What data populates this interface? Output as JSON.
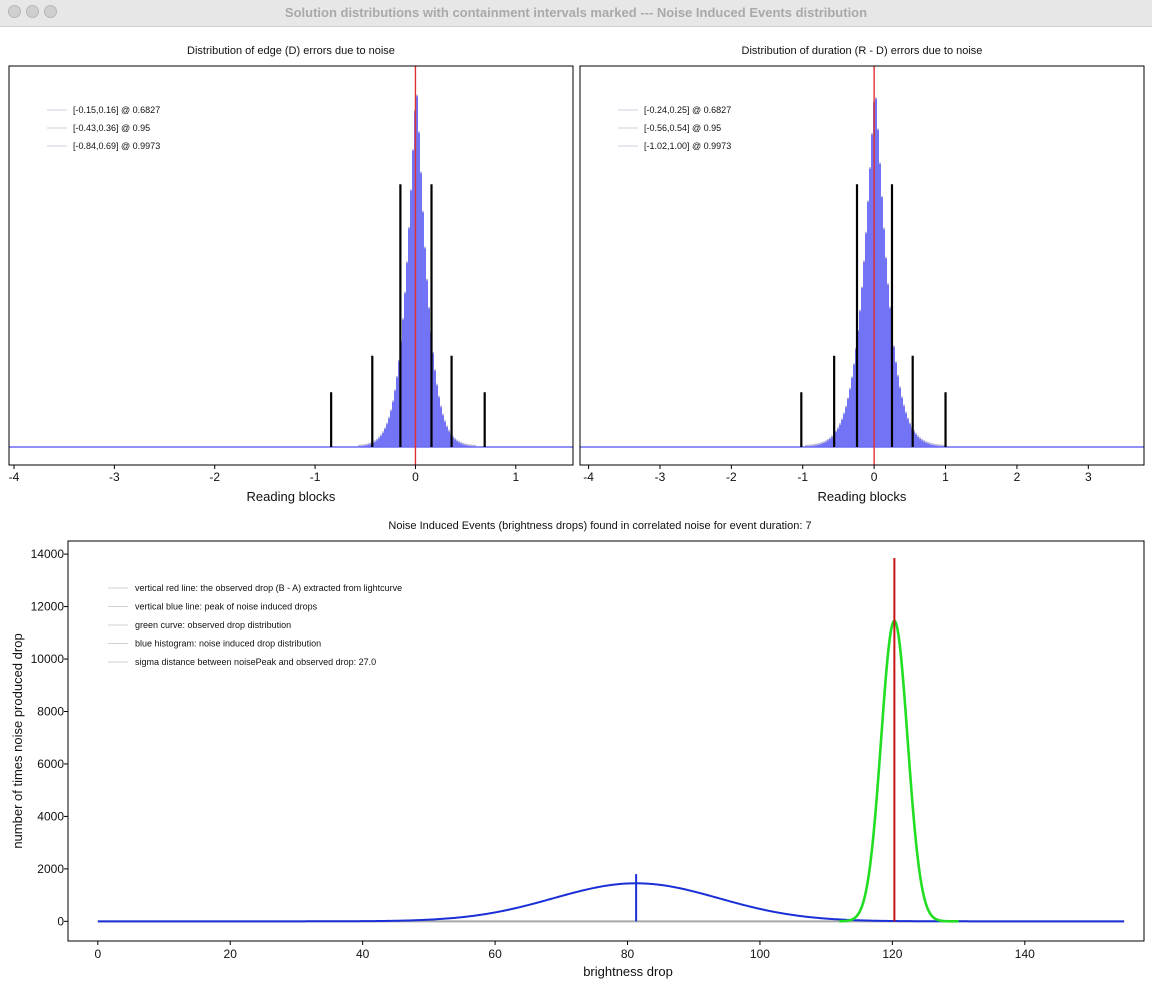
{
  "window": {
    "title": "Solution distributions with containment intervals marked --- Noise Induced Events distribution"
  },
  "chart_data": [
    {
      "type": "histogram",
      "title": "Distribution of edge (D) errors due to noise",
      "xlabel": "Reading blocks",
      "ylabel": "",
      "xlim": [
        -4.05,
        1.57
      ],
      "x_ticks": [
        -4,
        -3,
        -2,
        -1,
        0,
        1
      ],
      "x_tick_labels": [
        "-4",
        "-3",
        "-2",
        "-1",
        "0",
        "1"
      ],
      "distribution": {
        "center": 0.0,
        "peak_height_fraction": 0.98,
        "shape": "laplace-like",
        "scale": 0.12
      },
      "center_line": 0,
      "intervals": [
        {
          "low": -0.15,
          "high": 0.16,
          "confidence": 0.6827,
          "marker_height_fraction": 0.72
        },
        {
          "low": -0.43,
          "high": 0.36,
          "confidence": 0.95,
          "marker_height_fraction": 0.25
        },
        {
          "low": -0.84,
          "high": 0.69,
          "confidence": 0.9973,
          "marker_height_fraction": 0.15
        }
      ],
      "legend": [
        "[-0.15,0.16] @ 0.6827",
        "[-0.43,0.36] @ 0.95",
        "[-0.84,0.69] @ 0.9973"
      ],
      "legend_position": "top-left",
      "colors": {
        "histogram": "#6b6bf5",
        "center_line": "#e03030",
        "interval": "#000000"
      }
    },
    {
      "type": "histogram",
      "title": "Distribution of duration (R - D) errors due to noise",
      "xlabel": "Reading blocks",
      "ylabel": "",
      "xlim": [
        -4.12,
        3.78
      ],
      "x_ticks": [
        -4,
        -3,
        -2,
        -1,
        0,
        1,
        2,
        3
      ],
      "x_tick_labels": [
        "-4",
        "-3",
        "-2",
        "-1",
        "0",
        "1",
        "2",
        "3"
      ],
      "distribution": {
        "center": 0.0,
        "peak_height_fraction": 0.98,
        "shape": "laplace-like",
        "scale": 0.2
      },
      "center_line": 0,
      "intervals": [
        {
          "low": -0.24,
          "high": 0.25,
          "confidence": 0.6827,
          "marker_height_fraction": 0.72
        },
        {
          "low": -0.56,
          "high": 0.54,
          "confidence": 0.95,
          "marker_height_fraction": 0.25
        },
        {
          "low": -1.02,
          "high": 1.0,
          "confidence": 0.9973,
          "marker_height_fraction": 0.15
        }
      ],
      "legend": [
        "[-0.24,0.25] @ 0.6827",
        "[-0.56,0.54] @ 0.95",
        "[-1.02,1.00] @ 0.9973"
      ],
      "legend_position": "top-left",
      "colors": {
        "histogram": "#6b6bf5",
        "center_line": "#e03030",
        "interval": "#000000"
      }
    },
    {
      "type": "line",
      "title": "Noise Induced Events (brightness drops) found in correlated noise for event duration: 7",
      "xlabel": "brightness drop",
      "ylabel": "number of times noise produced drop",
      "xlim": [
        -4.5,
        158
      ],
      "ylim": [
        -750,
        14500
      ],
      "x_ticks": [
        0,
        20,
        40,
        60,
        80,
        100,
        120,
        140
      ],
      "x_tick_labels": [
        "0",
        "20",
        "40",
        "60",
        "80",
        "100",
        "120",
        "140"
      ],
      "y_ticks": [
        0,
        2000,
        4000,
        6000,
        8000,
        10000,
        12000,
        14000
      ],
      "y_tick_labels": [
        "0",
        "2000",
        "4000",
        "6000",
        "8000",
        "10000",
        "12000",
        "14000"
      ],
      "series": [
        {
          "name": "blue histogram: noise induced drop distribution",
          "shape": "gaussian",
          "mean": 81.3,
          "sd": 12.5,
          "peak": 1450,
          "x_range": [
            0,
            155
          ],
          "color": "#1a2fd6"
        },
        {
          "name": "green curve: observed drop distribution",
          "shape": "gaussian",
          "mean": 120.3,
          "sd": 2.0,
          "peak": 11450,
          "x_range": [
            112,
            130
          ],
          "color": "#22dd22"
        }
      ],
      "vertical_lines": [
        {
          "name": "vertical red line: the observed drop (B - A) extracted from lightcurve",
          "x": 120.3,
          "y_top": 13850,
          "color": "#c81414"
        },
        {
          "name": "vertical blue line: peak of noise induced drops",
          "x": 81.3,
          "y_top": 1800,
          "color": "#1a2fd6"
        }
      ],
      "baseline": {
        "x_range": [
          0,
          155
        ],
        "y": 0,
        "color": "#a8a8a8"
      },
      "legend": [
        "vertical red line: the observed drop (B - A) extracted from lightcurve",
        "vertical blue line: peak of noise induced drops",
        "green curve: observed drop distribution",
        "blue histogram: noise induced drop distribution",
        "sigma distance between noisePeak and observed drop: 27.0"
      ],
      "legend_position": "top-left"
    }
  ]
}
